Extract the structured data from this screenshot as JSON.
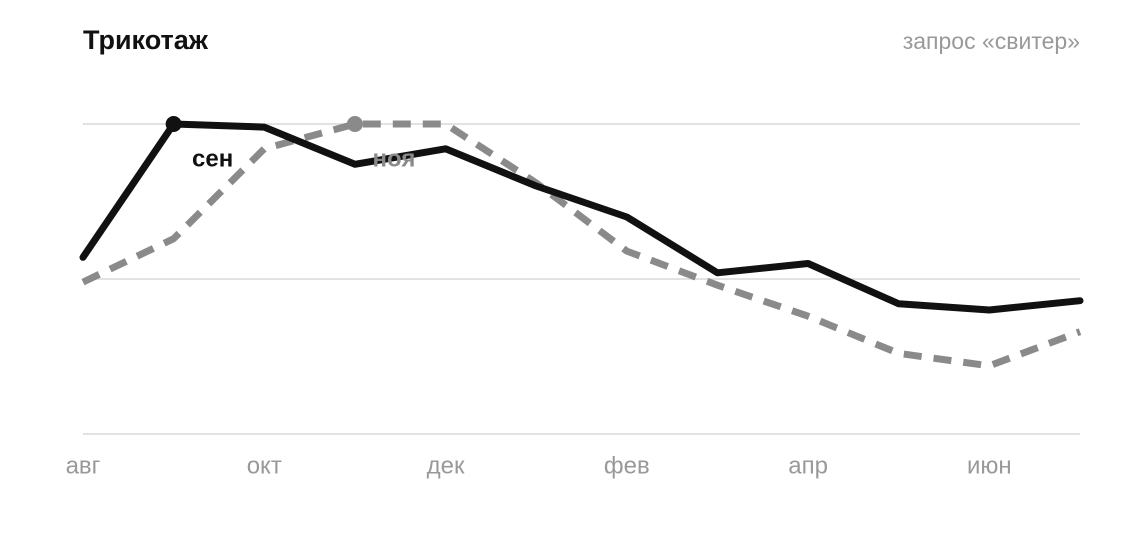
{
  "chart_data": {
    "type": "line",
    "title": "Трикотаж",
    "subtitle": "запрос «свитер»",
    "categories": [
      "авг",
      null,
      "окт",
      null,
      "дек",
      null,
      "фев",
      null,
      "апр",
      null,
      "июн",
      null
    ],
    "series": [
      {
        "color": "#111111",
        "dashed": false,
        "values": [
          57,
          100,
          99,
          87,
          92,
          80,
          70,
          52,
          55,
          42,
          40,
          43
        ]
      },
      {
        "color": "#8a8a8a",
        "dashed": true,
        "values": [
          49,
          63,
          92,
          100,
          100,
          81,
          59,
          48,
          38,
          26,
          22,
          33
        ]
      }
    ],
    "annotations": [
      {
        "text": "сен",
        "series": 0,
        "index": 1
      },
      {
        "text": "ноя",
        "series": 1,
        "index": 3
      }
    ],
    "ylim": [
      0,
      100
    ],
    "yticks": [
      0,
      50,
      100
    ],
    "ytick_labels": false,
    "grid": true
  }
}
